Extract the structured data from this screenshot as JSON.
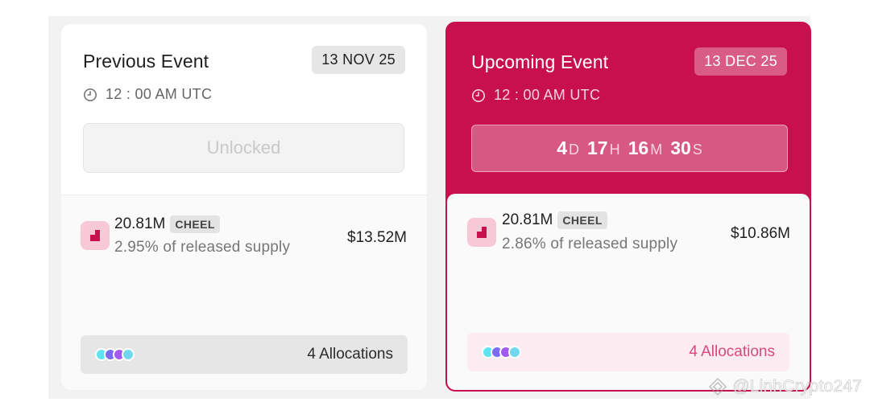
{
  "previous_event": {
    "title": "Previous Event",
    "date": "13 NOV 25",
    "time": "12 : 00 AM UTC",
    "status_label": "Unlocked",
    "amount": "20.81M",
    "ticker": "CHEEL",
    "supply_text": "2.95% of released supply",
    "usd_value": "$13.52M",
    "allocations_label": "4 Allocations"
  },
  "upcoming_event": {
    "title": "Upcoming Event",
    "date": "13 DEC 25",
    "time": "12 : 00 AM UTC",
    "countdown": {
      "days": "4",
      "days_unit": "D",
      "hours": "17",
      "hours_unit": "H",
      "minutes": "16",
      "minutes_unit": "M",
      "seconds": "30",
      "seconds_unit": "S"
    },
    "amount": "20.81M",
    "ticker": "CHEEL",
    "supply_text": "2.86% of released supply",
    "usd_value": "$10.86M",
    "allocations_label": "4 Allocations"
  },
  "allocation_dot_colors": [
    "#5fe3f0",
    "#7b6cf6",
    "#a35af0",
    "#6fd8ef"
  ],
  "colors": {
    "accent": "#c8104f",
    "token_icon_bg": "#f7c9d7",
    "token_icon_fg": "#c8104f"
  },
  "icons": {
    "clock": "clock-icon",
    "token": "cheel-token-icon",
    "watermark": "diamond-logo-icon"
  },
  "watermark": "@LinhCrypto247"
}
